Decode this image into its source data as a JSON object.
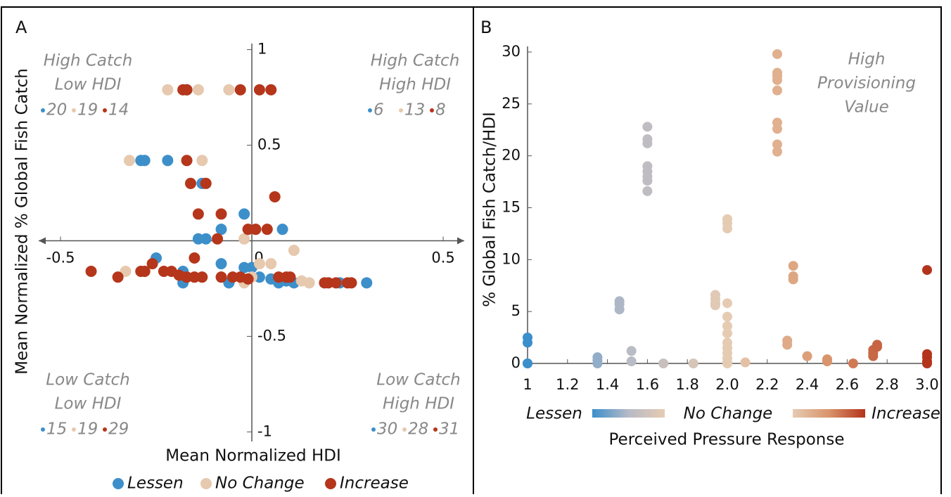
{
  "chart_data": [
    {
      "type": "scatter",
      "label": "A",
      "xlabel": "Mean Normalized HDI",
      "ylabel": "Mean Normalized % Global Fish Catch",
      "xlim": [
        -0.557,
        0.555
      ],
      "ylim": [
        -1.05,
        1.05
      ],
      "xticks": [
        -0.5,
        0,
        0.5
      ],
      "yticks": [
        -1,
        -0.5,
        0.5,
        1
      ],
      "series": [
        {
          "name": "Lessen",
          "color": "#3d8fca",
          "x": [
            -0.17,
            -0.29,
            -0.28,
            -0.22,
            -0.13,
            -0.02,
            -0.08,
            0.08,
            -0.14,
            -0.12,
            -0.25,
            -0.08,
            -0.02,
            0.0,
            -0.18,
            0.02,
            -0.18,
            -0.06,
            0.07,
            0.11,
            0.23,
            0.3,
            0.05,
            0.09
          ],
          "values": [
            0.79,
            0.42,
            0.42,
            0.42,
            0.3,
            0.14,
            0.06,
            0.06,
            0.01,
            0.01,
            -0.09,
            -0.12,
            -0.14,
            -0.14,
            -0.16,
            -0.19,
            -0.22,
            -0.22,
            -0.22,
            -0.22,
            -0.22,
            -0.22,
            -0.2,
            -0.21
          ]
        },
        {
          "name": "No Change",
          "color": "#e6c9ae",
          "x": [
            -0.22,
            -0.14,
            -0.06,
            -0.32,
            -0.13,
            -0.02,
            0.11,
            0.02,
            0.05,
            -0.33,
            0.15,
            -0.02,
            0.0,
            0.13
          ],
          "values": [
            0.79,
            0.79,
            0.79,
            0.42,
            0.42,
            0.01,
            -0.05,
            -0.12,
            -0.12,
            -0.16,
            -0.22,
            -0.22,
            -0.19,
            -0.21
          ]
        },
        {
          "name": "Increase",
          "color": "#b5361b",
          "x": [
            -0.18,
            -0.17,
            -0.03,
            0.02,
            0.05,
            -0.17,
            -0.16,
            -0.12,
            0.06,
            -0.14,
            -0.08,
            -0.01,
            0.01,
            0.04,
            -0.09,
            -0.15,
            -0.26,
            -0.42,
            -0.29,
            -0.28,
            -0.23,
            -0.21,
            -0.19,
            -0.17,
            -0.15,
            -0.35,
            -0.13,
            -0.08,
            -0.03,
            0.07,
            0.09,
            0.1,
            0.19,
            0.2,
            0.22,
            0.26,
            0.25,
            -0.05,
            -0.01
          ],
          "values": [
            0.79,
            0.79,
            0.79,
            0.79,
            0.79,
            0.42,
            0.3,
            0.3,
            0.23,
            0.14,
            0.14,
            0.06,
            0.06,
            0.06,
            0.01,
            -0.09,
            -0.12,
            -0.16,
            -0.16,
            -0.16,
            -0.16,
            -0.16,
            -0.18,
            -0.19,
            -0.19,
            -0.19,
            -0.19,
            -0.19,
            -0.19,
            -0.19,
            -0.19,
            -0.19,
            -0.22,
            -0.22,
            -0.22,
            -0.22,
            -0.22,
            -0.19,
            -0.2
          ]
        }
      ],
      "quadrants": [
        {
          "lines": [
            "High Catch",
            "Low HDI"
          ],
          "counts": [
            20,
            19,
            14
          ]
        },
        {
          "lines": [
            "High Catch",
            "High HDI"
          ],
          "counts": [
            6,
            13,
            8
          ]
        },
        {
          "lines": [
            "Low Catch",
            "Low HDI"
          ],
          "counts": [
            15,
            19,
            29
          ]
        },
        {
          "lines": [
            "Low Catch",
            "High HDI"
          ],
          "counts": [
            30,
            28,
            31
          ]
        }
      ]
    },
    {
      "type": "scatter",
      "label": "B",
      "xlabel": "Perceived Pressure Response",
      "ylabel": "% Global Fish Catch/HDI",
      "xlim": [
        1,
        3
      ],
      "ylim": [
        0,
        30
      ],
      "xticks": [
        1,
        1.2,
        1.4,
        1.6,
        1.8,
        {
          "value": 2,
          "label": "2.0"
        },
        2.2,
        2.4,
        2.6,
        2.8,
        {
          "value": 3,
          "label": "3.0"
        }
      ],
      "yticks": [
        0,
        5,
        10,
        15,
        20,
        25,
        30
      ],
      "x": [
        1,
        1,
        1,
        1,
        1.35,
        1.35,
        1.35,
        1.46,
        1.46,
        1.46,
        1.52,
        1.52,
        1.6,
        1.6,
        1.6,
        1.6,
        1.6,
        1.6,
        1.6,
        1.6,
        1.68,
        1.83,
        1.94,
        1.94,
        1.94,
        1.94,
        2,
        2,
        2,
        2,
        2,
        2,
        2,
        2,
        2,
        2,
        2,
        2,
        2,
        2.09,
        2.25,
        2.25,
        2.25,
        2.25,
        2.25,
        2.25,
        2.25,
        2.25,
        2.25,
        2.3,
        2.3,
        2.33,
        2.33,
        2.33,
        2.4,
        2.5,
        2.5,
        2.63,
        2.73,
        2.73,
        2.73,
        2.75,
        2.75,
        3,
        3,
        3,
        3,
        3
      ],
      "values": [
        2.5,
        2.0,
        0,
        0,
        0.6,
        0.3,
        0,
        6.0,
        5.7,
        5.2,
        1.2,
        0.2,
        22.8,
        21.6,
        21.2,
        19.0,
        18.5,
        18.0,
        17.6,
        16.6,
        0,
        0,
        6.6,
        6.2,
        5.8,
        5.6,
        13.9,
        13.5,
        13.0,
        5.8,
        4.5,
        3.6,
        2.9,
        2.0,
        1.5,
        1.0,
        0.5,
        0.1,
        0,
        0.1,
        29.8,
        28.0,
        27.7,
        27.3,
        26.3,
        23.2,
        22.6,
        21.1,
        20.4,
        2.2,
        1.8,
        9.4,
        8.4,
        8.1,
        0.7,
        0.4,
        0.2,
        0,
        1.3,
        1.0,
        0.7,
        1.8,
        1.6,
        9.0,
        0.9,
        0.6,
        0.2,
        0
      ],
      "annotation": [
        "High",
        "Provisioning",
        "Value"
      ],
      "colorbar": {
        "labels": [
          "Lessen",
          "No Change",
          "Increase"
        ],
        "colors": [
          "#3b8fcb",
          "#b7bac6",
          "#e6cbb3",
          "#d9946b",
          "#b3341b"
        ]
      }
    }
  ]
}
